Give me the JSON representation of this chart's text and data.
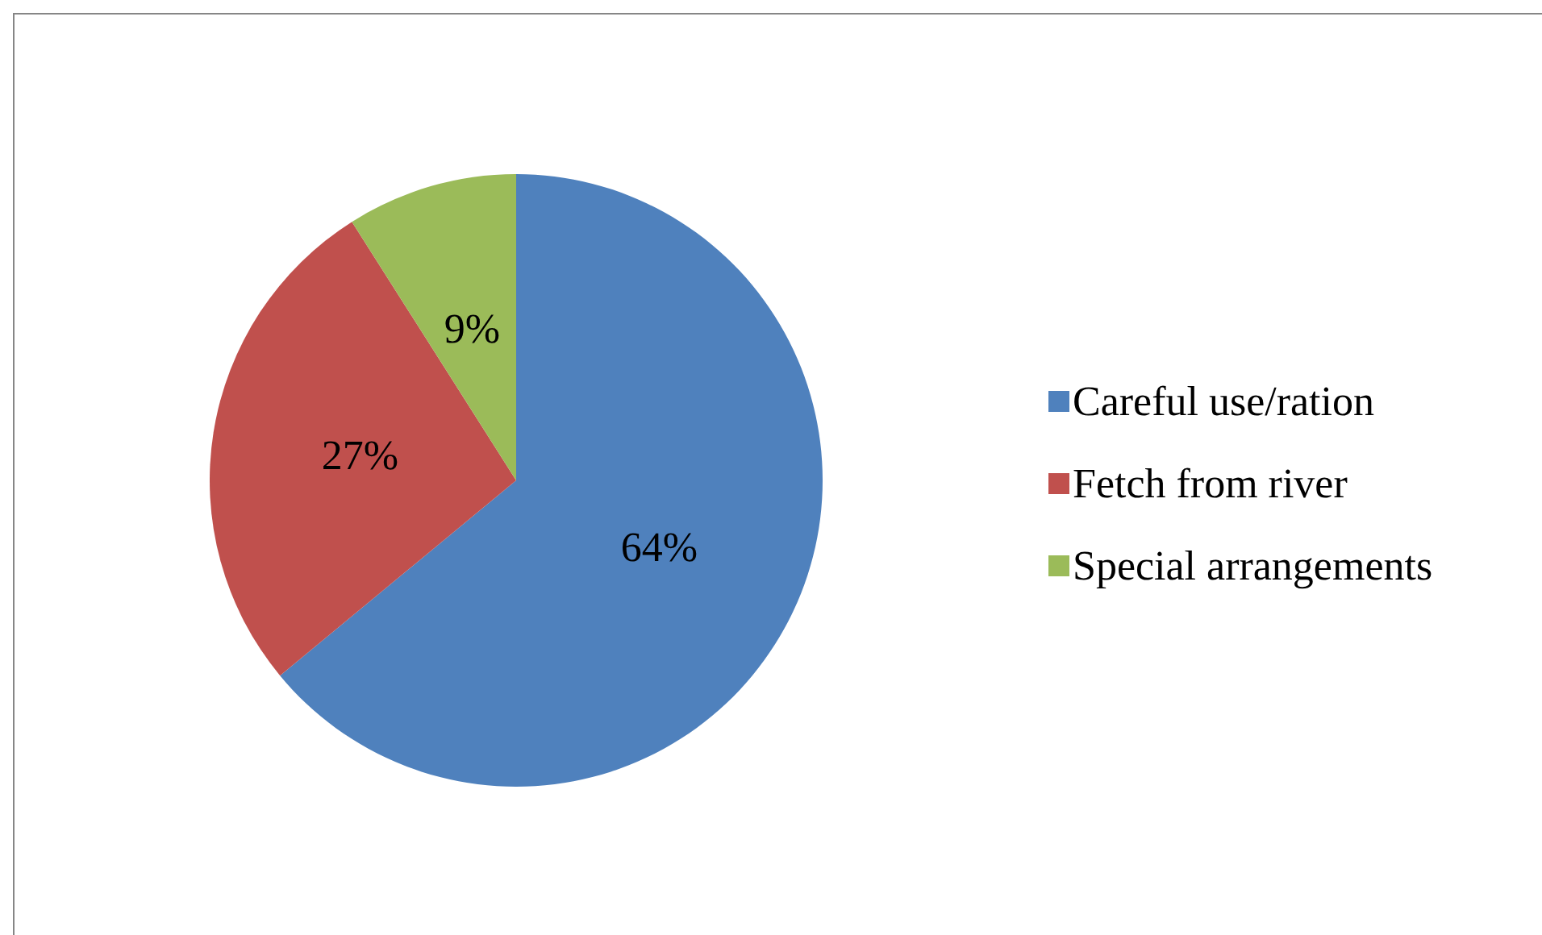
{
  "chart_data": {
    "type": "pie",
    "categories": [
      "Careful use/ration",
      "Fetch from river",
      "Special arrangements"
    ],
    "values": [
      64,
      27,
      9
    ],
    "colors": [
      "#4f81bd",
      "#c0504d",
      "#9bbb59"
    ],
    "value_labels": [
      "64%",
      "27%",
      "9%"
    ],
    "legend": "right"
  }
}
